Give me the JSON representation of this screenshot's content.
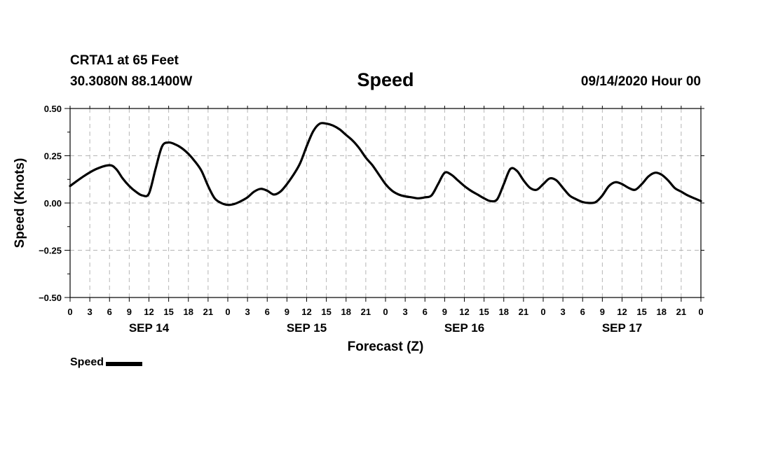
{
  "header": {
    "station": "CRTA1 at 65 Feet",
    "coords": "30.3080N 88.1400W",
    "datetime": "09/14/2020 Hour 00"
  },
  "legend": {
    "label": "Speed",
    "color": "#000000"
  },
  "chart_data": {
    "type": "line",
    "title": "Speed",
    "xlabel": "Forecast (Z)",
    "ylabel": "Speed (Knots)",
    "ylim": [
      -0.5,
      0.5
    ],
    "xlim": [
      0,
      96
    ],
    "yticks": [
      "0.50",
      "0.25",
      "0.00",
      "−0.25",
      "−0.50"
    ],
    "xticks": [
      "0",
      "3",
      "6",
      "9",
      "12",
      "15",
      "18",
      "21",
      "0",
      "3",
      "6",
      "9",
      "12",
      "15",
      "18",
      "21",
      "0",
      "3",
      "6",
      "9",
      "12",
      "15",
      "18",
      "21",
      "0",
      "3",
      "6",
      "9",
      "12",
      "15",
      "18",
      "21",
      "0"
    ],
    "day_labels": [
      {
        "label": "SEP 14",
        "hour": 12
      },
      {
        "label": "SEP 15",
        "hour": 36
      },
      {
        "label": "SEP 16",
        "hour": 60
      },
      {
        "label": "SEP 17",
        "hour": 84
      }
    ],
    "grid": true,
    "legend_position": "bottom-left",
    "series": [
      {
        "name": "Speed",
        "color": "#000000",
        "x": [
          0,
          2,
          4,
          6,
          7,
          8,
          9,
          10,
          11,
          12,
          13,
          14,
          15,
          16,
          17,
          18,
          19,
          20,
          21,
          22,
          23,
          24,
          25,
          26,
          27,
          28,
          29,
          30,
          31,
          32,
          33,
          34,
          35,
          36,
          37,
          38,
          39,
          40,
          41,
          42,
          43,
          44,
          45,
          46,
          47,
          48,
          49,
          50,
          51,
          52,
          53,
          54,
          55,
          56,
          57,
          58,
          59,
          60,
          61,
          62,
          63,
          64,
          65,
          66,
          67,
          68,
          69,
          70,
          71,
          72,
          73,
          74,
          75,
          76,
          77,
          78,
          79,
          80,
          81,
          82,
          83,
          84,
          85,
          86,
          87,
          88,
          89,
          90,
          91,
          92,
          93,
          94,
          95,
          96
        ],
        "y": [
          0.09,
          0.14,
          0.18,
          0.2,
          0.18,
          0.13,
          0.09,
          0.06,
          0.04,
          0.05,
          0.18,
          0.3,
          0.32,
          0.31,
          0.29,
          0.26,
          0.22,
          0.17,
          0.09,
          0.025,
          0.0,
          -0.01,
          -0.005,
          0.01,
          0.03,
          0.06,
          0.075,
          0.065,
          0.045,
          0.06,
          0.1,
          0.15,
          0.21,
          0.3,
          0.38,
          0.42,
          0.42,
          0.41,
          0.39,
          0.36,
          0.33,
          0.29,
          0.24,
          0.2,
          0.15,
          0.1,
          0.065,
          0.045,
          0.035,
          0.03,
          0.025,
          0.03,
          0.04,
          0.1,
          0.16,
          0.15,
          0.12,
          0.09,
          0.065,
          0.045,
          0.025,
          0.01,
          0.02,
          0.1,
          0.18,
          0.17,
          0.12,
          0.08,
          0.07,
          0.1,
          0.13,
          0.12,
          0.08,
          0.04,
          0.02,
          0.005,
          0.0,
          0.005,
          0.04,
          0.09,
          0.11,
          0.1,
          0.08,
          0.07,
          0.1,
          0.14,
          0.16,
          0.15,
          0.12,
          0.08,
          0.06,
          0.04,
          0.025,
          0.01
        ]
      }
    ]
  }
}
